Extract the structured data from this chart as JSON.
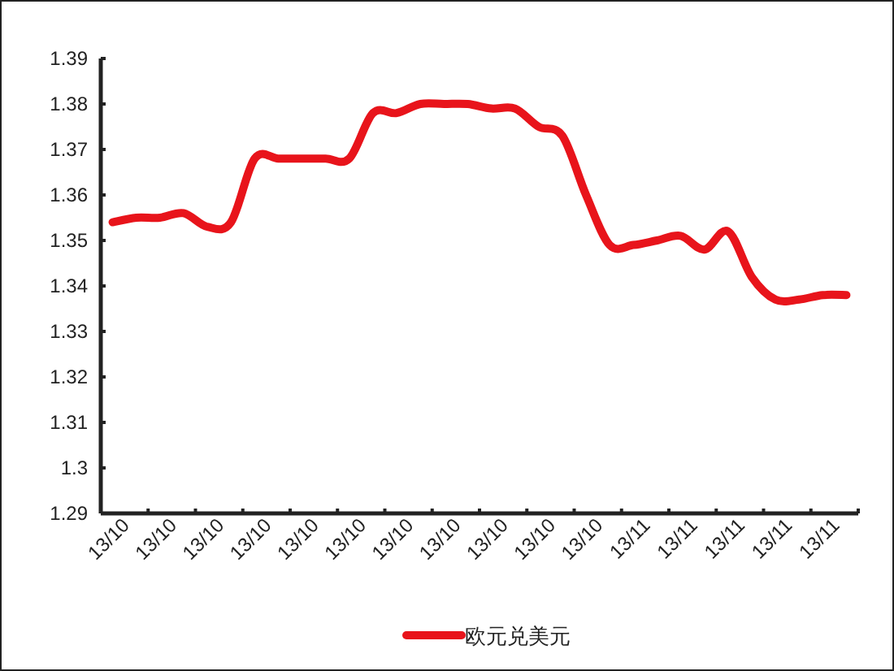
{
  "chart_data": {
    "type": "line",
    "categories": [
      "13/10",
      null,
      "13/10",
      null,
      "13/10",
      null,
      "13/10",
      null,
      "13/10",
      null,
      "13/10",
      null,
      "13/10",
      null,
      "13/10",
      null,
      "13/10",
      null,
      "13/10",
      null,
      "13/10",
      null,
      "13/11",
      null,
      "13/11",
      null,
      "13/11",
      null,
      "13/11",
      null,
      "13/11",
      null
    ],
    "series": [
      {
        "name": "欧元兑美元",
        "color": "#e8141b",
        "values": [
          1.354,
          1.355,
          1.355,
          1.356,
          1.353,
          1.354,
          1.368,
          1.368,
          1.368,
          1.368,
          1.368,
          1.378,
          1.378,
          1.38,
          1.38,
          1.38,
          1.379,
          1.379,
          1.375,
          1.373,
          1.36,
          1.349,
          1.349,
          1.35,
          1.351,
          1.348,
          1.352,
          1.342,
          1.337,
          1.337,
          1.338,
          1.338
        ]
      }
    ],
    "ylim": [
      1.29,
      1.39
    ],
    "yticks": [
      1.29,
      1.3,
      1.31,
      1.32,
      1.33,
      1.34,
      1.35,
      1.36,
      1.37,
      1.38,
      1.39
    ],
    "legend": "bottom",
    "marker": "none",
    "line_style": "solid"
  }
}
